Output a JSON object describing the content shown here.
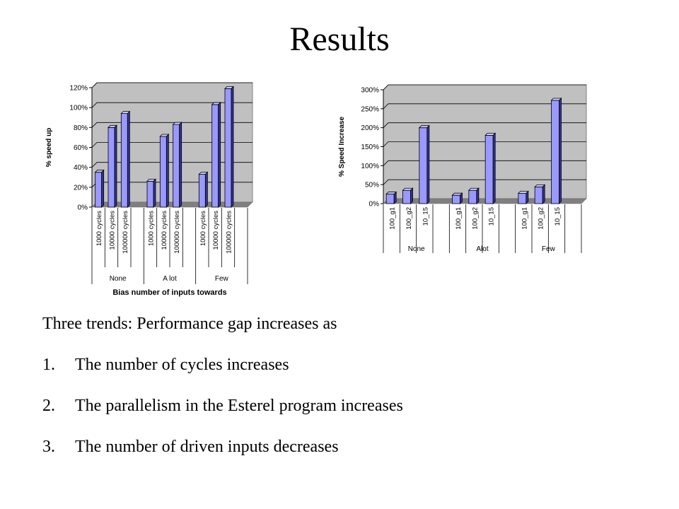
{
  "title": "Results",
  "chart_data": [
    {
      "type": "bar",
      "title": "",
      "ylabel": "% speed up",
      "xlabel": "Bias number of inputs towards",
      "ylim": [
        0,
        120
      ],
      "ytick_labels": [
        "0%",
        "20%",
        "40%",
        "60%",
        "80%",
        "100%",
        "120%"
      ],
      "groups": [
        "None",
        "A lot",
        "Few"
      ],
      "subcategories": [
        "1000 cycles",
        "10000 cycles",
        "100000 cycles"
      ],
      "values": [
        [
          35,
          80,
          94
        ],
        [
          26,
          71,
          83
        ],
        [
          33,
          103,
          119
        ]
      ],
      "grid": true,
      "legend": "none"
    },
    {
      "type": "bar",
      "title": "",
      "ylabel": "% Speed Increase",
      "xlabel": "",
      "ylim": [
        0,
        300
      ],
      "ytick_labels": [
        "0%",
        "50%",
        "100%",
        "150%",
        "200%",
        "250%",
        "300%"
      ],
      "groups": [
        "None",
        "Alot",
        "Few"
      ],
      "subcategories": [
        "100_g1",
        "100_g2",
        "10_15"
      ],
      "values": [
        [
          25,
          35,
          200
        ],
        [
          22,
          35,
          180
        ],
        [
          27,
          44,
          272
        ]
      ],
      "grid": true,
      "legend": "none"
    }
  ],
  "trends": {
    "intro": "Three trends: Performance gap increases as",
    "items": [
      {
        "num": "1.",
        "text": "The number of cycles increases"
      },
      {
        "num": "2.",
        "text": "The parallelism in the Esterel program increases"
      },
      {
        "num": "3.",
        "text": "The number of driven inputs decreases"
      }
    ]
  }
}
